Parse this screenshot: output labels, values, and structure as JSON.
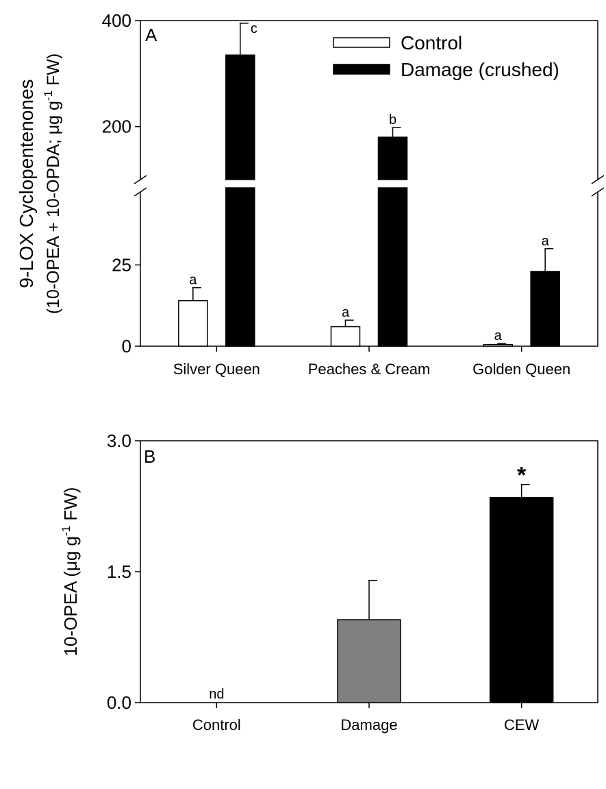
{
  "chart_data": [
    {
      "type": "bar",
      "panel_label": "A",
      "ylabel_line1": "9-LOX Cyclopentenones",
      "ylabel_line2_pre": "(10-OPEA + 10-OPDA; μg g",
      "ylabel_line2_sup": "-1",
      "ylabel_line2_post": " FW)",
      "categories": [
        "Silver Queen",
        "Peaches & Cream",
        "Golden Queen"
      ],
      "y_broken": true,
      "ylim_lower": [
        0,
        50
      ],
      "ylim_upper": [
        100,
        400
      ],
      "yticks_lower": [
        "0",
        "25"
      ],
      "yticks_upper": [
        "200",
        "400"
      ],
      "series": [
        {
          "name": "Control",
          "color": "#ffffff",
          "values": [
            14,
            6,
            0.5
          ],
          "errors": [
            4,
            2,
            0.3
          ],
          "letters": [
            "a",
            "a",
            "a"
          ]
        },
        {
          "name": "Damage (crushed)",
          "color": "#000000",
          "values": [
            335,
            180,
            23
          ],
          "errors": [
            60,
            18,
            7
          ],
          "letters": [
            "c",
            "b",
            "a"
          ]
        }
      ]
    },
    {
      "type": "bar",
      "panel_label": "B",
      "ylabel_pre": "10-OPEA (μg g",
      "ylabel_sup": "-1",
      "ylabel_post": " FW)",
      "categories": [
        "Control",
        "Damage",
        "CEW"
      ],
      "values": [
        0,
        0.95,
        2.35
      ],
      "errors": [
        0,
        0.45,
        0.15
      ],
      "colors": [
        "#ffffff",
        "#808080",
        "#000000"
      ],
      "annotations": [
        "nd",
        "",
        "*"
      ],
      "ylim": [
        0,
        3
      ],
      "yticks": [
        "0.0",
        "1.5",
        "3.0"
      ]
    }
  ]
}
